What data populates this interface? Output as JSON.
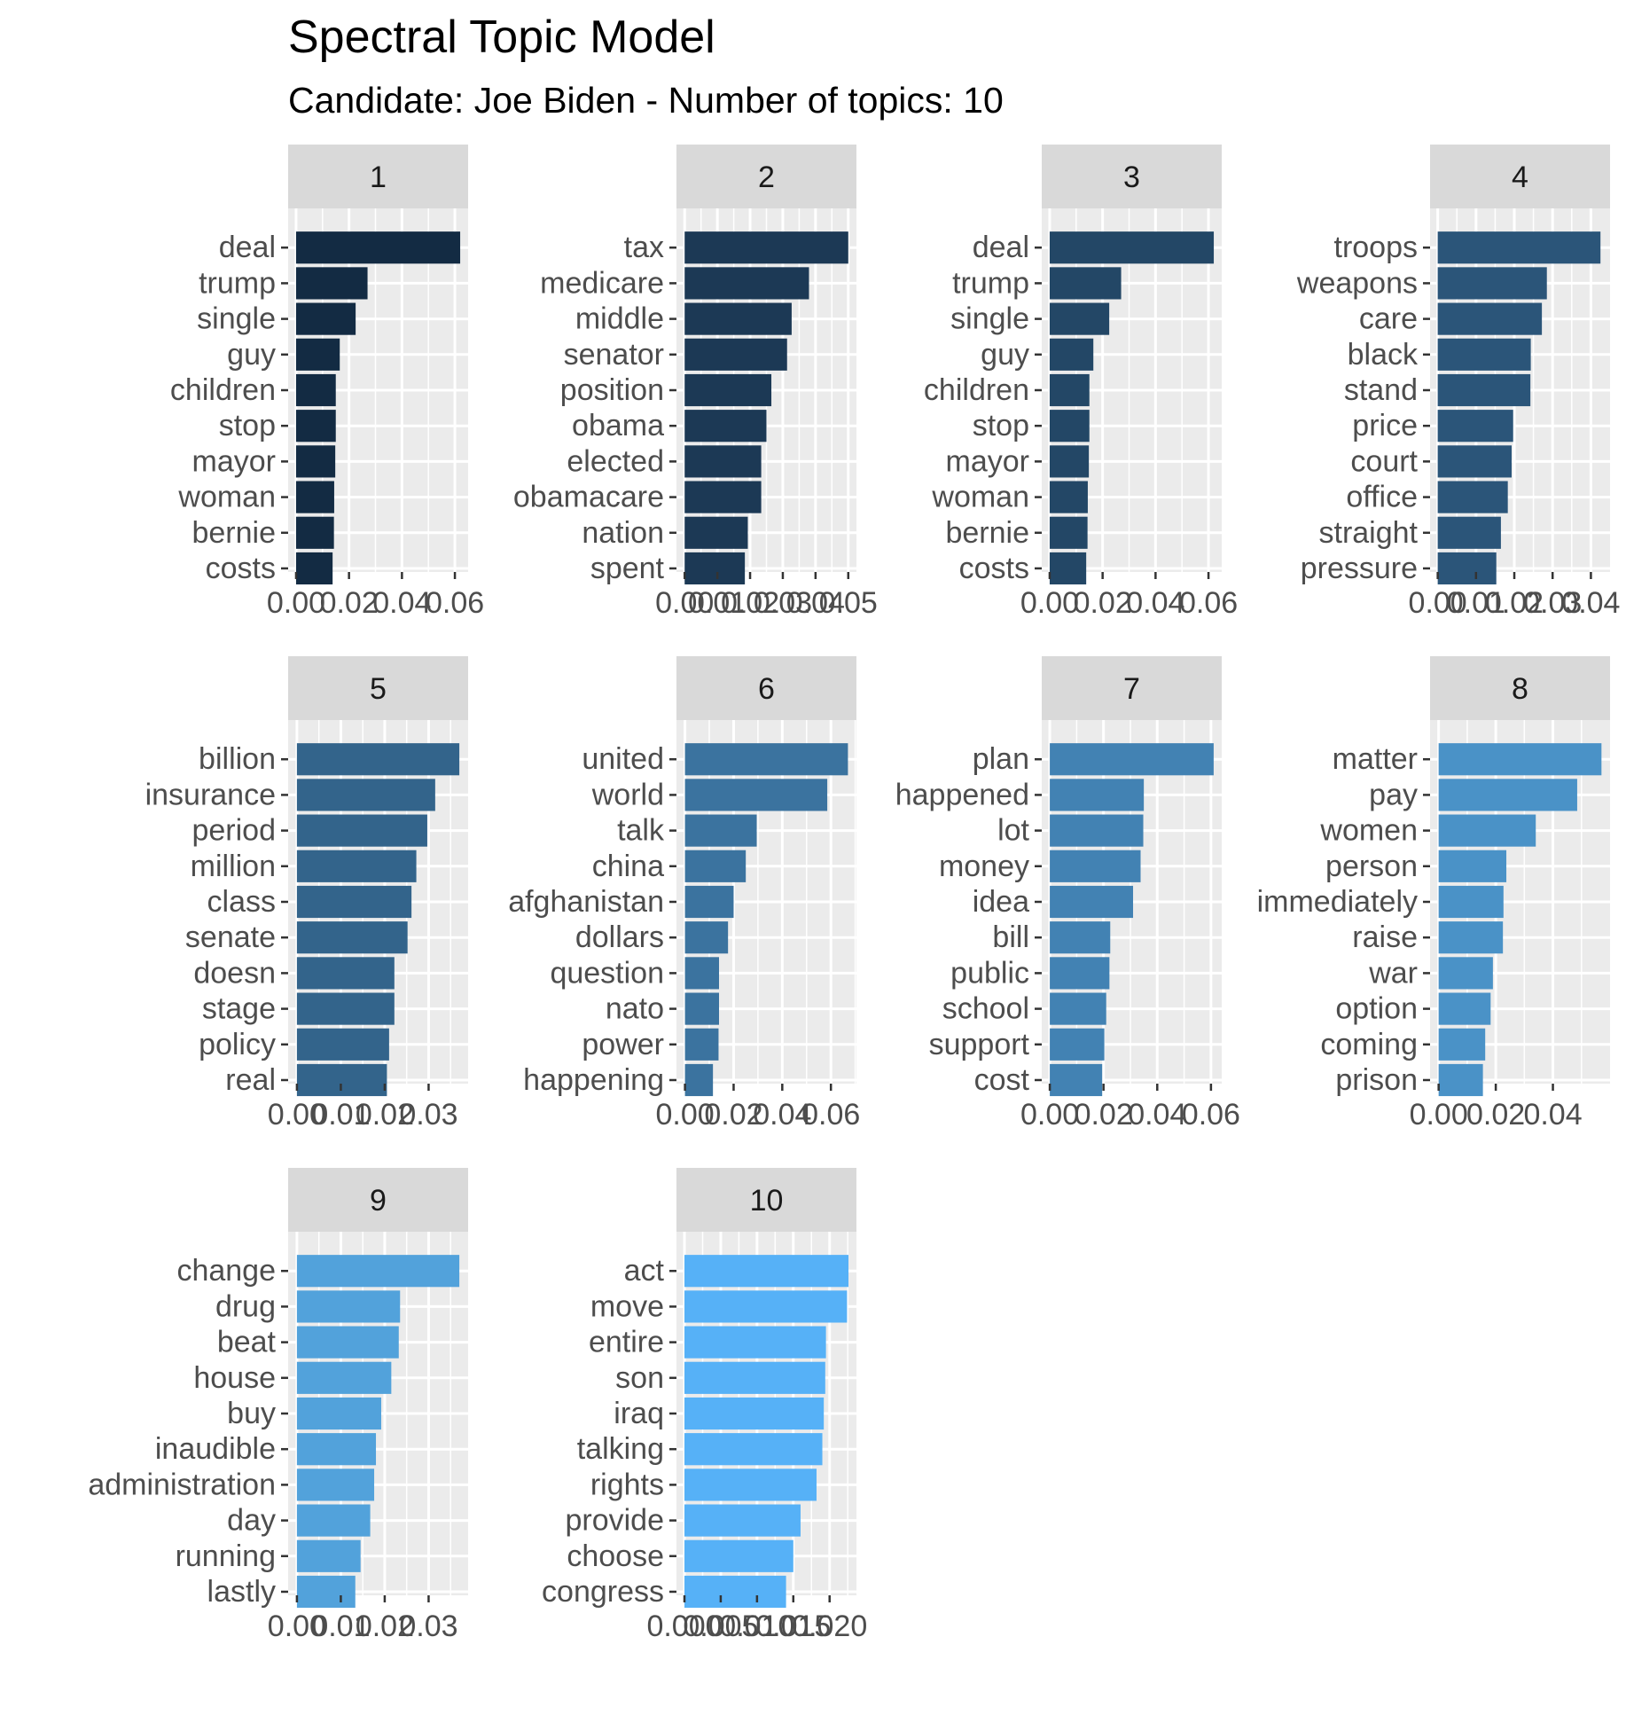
{
  "chart_data": {
    "type": "bar",
    "title": "Spectral Topic Model",
    "subtitle": "Candidate: Joe Biden - Number of topics: 10",
    "orientation": "horizontal",
    "facet_layout": "4 columns, free x scales",
    "colors": [
      "#132b43",
      "#1c3955",
      "#234766",
      "#2b5579",
      "#33648b",
      "#3b739f",
      "#4282b3",
      "#4a92c7",
      "#52a2db",
      "#56b1f7"
    ],
    "panel_background": "#ebebeb",
    "strip_background": "#d9d9d9",
    "grid": true,
    "facets": [
      {
        "label": "1",
        "terms": [
          "deal",
          "trump",
          "single",
          "guy",
          "children",
          "stop",
          "mayor",
          "woman",
          "bernie",
          "costs"
        ],
        "values": [
          0.062,
          0.027,
          0.0225,
          0.0165,
          0.015,
          0.015,
          0.0148,
          0.0144,
          0.0143,
          0.0138
        ],
        "xlim": [
          -0.003,
          0.065
        ],
        "ticks": [
          0,
          0.02,
          0.04,
          0.06
        ],
        "tick_labels": [
          "0.00",
          "0.02",
          "0.04",
          "0.06"
        ]
      },
      {
        "label": "2",
        "terms": [
          "tax",
          "medicare",
          "middle",
          "senator",
          "position",
          "obama",
          "elected",
          "obamacare",
          "nation",
          "spent"
        ],
        "values": [
          0.05,
          0.038,
          0.0327,
          0.0313,
          0.0265,
          0.025,
          0.0234,
          0.0234,
          0.0193,
          0.0184
        ],
        "xlim": [
          -0.0025,
          0.0525
        ],
        "ticks": [
          0,
          0.01,
          0.02,
          0.03,
          0.04,
          0.05
        ],
        "tick_labels": [
          "0.00",
          "0.01",
          "0.02",
          "0.03",
          "0.04",
          "0.05"
        ]
      },
      {
        "label": "3",
        "terms": [
          "deal",
          "trump",
          "single",
          "guy",
          "children",
          "stop",
          "mayor",
          "woman",
          "bernie",
          "costs"
        ],
        "values": [
          0.062,
          0.027,
          0.0225,
          0.0165,
          0.015,
          0.015,
          0.0148,
          0.0144,
          0.0143,
          0.0138
        ],
        "xlim": [
          -0.003,
          0.065
        ],
        "ticks": [
          0,
          0.02,
          0.04,
          0.06
        ],
        "tick_labels": [
          "0.00",
          "0.02",
          "0.04",
          "0.06"
        ]
      },
      {
        "label": "4",
        "terms": [
          "troops",
          "weapons",
          "care",
          "black",
          "stand",
          "price",
          "court",
          "office",
          "straight",
          "pressure"
        ],
        "values": [
          0.0425,
          0.0285,
          0.0272,
          0.0243,
          0.0242,
          0.0197,
          0.0193,
          0.0183,
          0.0165,
          0.0153
        ],
        "xlim": [
          -0.002,
          0.045
        ],
        "ticks": [
          0,
          0.01,
          0.02,
          0.03,
          0.04
        ],
        "tick_labels": [
          "0.00",
          "0.01",
          "0.02",
          "0.03",
          "0.04"
        ]
      },
      {
        "label": "5",
        "terms": [
          "billion",
          "insurance",
          "period",
          "million",
          "class",
          "senate",
          "doesn",
          "stage",
          "policy",
          "real"
        ],
        "values": [
          0.037,
          0.0315,
          0.0297,
          0.0272,
          0.0261,
          0.0252,
          0.0222,
          0.0222,
          0.021,
          0.0205
        ],
        "xlim": [
          -0.002,
          0.039
        ],
        "ticks": [
          0,
          0.01,
          0.02,
          0.03
        ],
        "tick_labels": [
          "0.00",
          "0.01",
          "0.02",
          "0.03"
        ]
      },
      {
        "label": "6",
        "terms": [
          "united",
          "world",
          "talk",
          "china",
          "afghanistan",
          "dollars",
          "question",
          "nato",
          "power",
          "happening"
        ],
        "values": [
          0.067,
          0.0585,
          0.0295,
          0.025,
          0.02,
          0.0177,
          0.014,
          0.014,
          0.0138,
          0.0115
        ],
        "xlim": [
          -0.0035,
          0.0705
        ],
        "ticks": [
          0,
          0.02,
          0.04,
          0.06
        ],
        "tick_labels": [
          "0.00",
          "0.02",
          "0.04",
          "0.06"
        ]
      },
      {
        "label": "7",
        "terms": [
          "plan",
          "happened",
          "lot",
          "money",
          "idea",
          "bill",
          "public",
          "school",
          "support",
          "cost"
        ],
        "values": [
          0.061,
          0.035,
          0.0348,
          0.0338,
          0.031,
          0.0225,
          0.0222,
          0.021,
          0.0203,
          0.0195
        ],
        "xlim": [
          -0.003,
          0.064
        ],
        "ticks": [
          0,
          0.02,
          0.04,
          0.06
        ],
        "tick_labels": [
          "0.00",
          "0.02",
          "0.04",
          "0.06"
        ]
      },
      {
        "label": "8",
        "terms": [
          "matter",
          "pay",
          "women",
          "person",
          "immediately",
          "raise",
          "war",
          "option",
          "coming",
          "prison"
        ],
        "values": [
          0.057,
          0.0485,
          0.034,
          0.0237,
          0.0227,
          0.0225,
          0.019,
          0.0182,
          0.0163,
          0.0155
        ],
        "xlim": [
          -0.003,
          0.06
        ],
        "ticks": [
          0,
          0.02,
          0.04
        ],
        "tick_labels": [
          "0.00",
          "0.02",
          "0.04"
        ]
      },
      {
        "label": "9",
        "terms": [
          "change",
          "drug",
          "beat",
          "house",
          "buy",
          "inaudible",
          "administration",
          "day",
          "running",
          "lastly"
        ],
        "values": [
          0.037,
          0.0235,
          0.0232,
          0.0215,
          0.0192,
          0.018,
          0.0176,
          0.0167,
          0.0145,
          0.0133
        ],
        "xlim": [
          -0.002,
          0.039
        ],
        "ticks": [
          0,
          0.01,
          0.02,
          0.03
        ],
        "tick_labels": [
          "0.00",
          "0.01",
          "0.02",
          "0.03"
        ]
      },
      {
        "label": "10",
        "terms": [
          "act",
          "move",
          "entire",
          "son",
          "iraq",
          "talking",
          "rights",
          "provide",
          "choose",
          "congress"
        ],
        "values": [
          0.0226,
          0.0224,
          0.0195,
          0.0194,
          0.0192,
          0.019,
          0.0182,
          0.016,
          0.015,
          0.014
        ],
        "xlim": [
          -0.0011,
          0.0237
        ],
        "ticks": [
          0,
          0.005,
          0.01,
          0.015,
          0.02
        ],
        "tick_labels": [
          "0.000",
          "0.005",
          "0.010",
          "0.015",
          "0.020"
        ]
      }
    ]
  }
}
